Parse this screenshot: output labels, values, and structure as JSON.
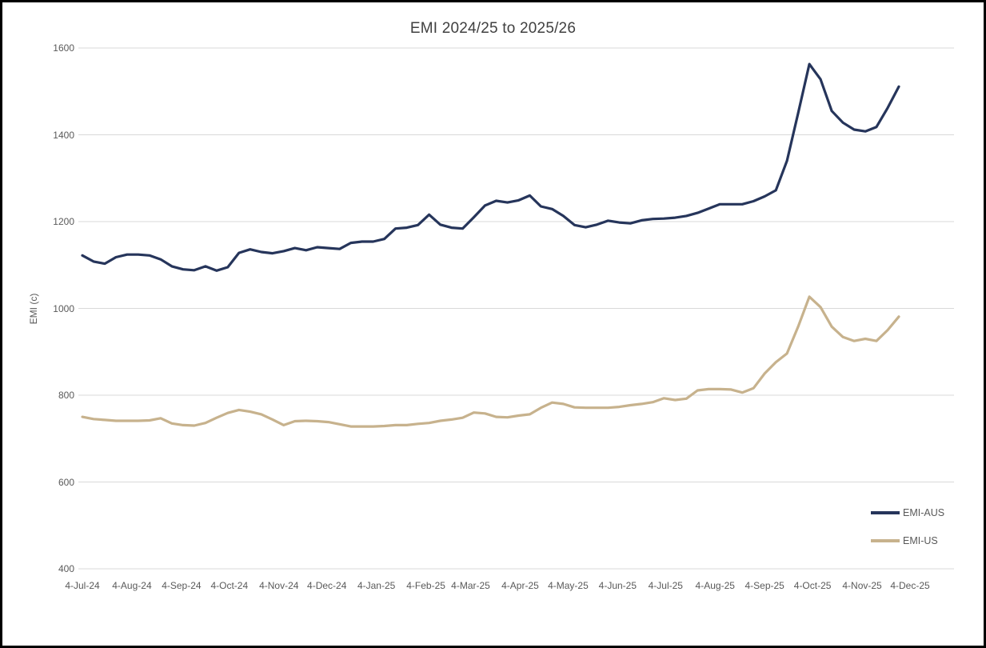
{
  "page": {
    "background": "#FFFFFF",
    "border_color": "#000000"
  },
  "chart_data": {
    "type": "line",
    "title": "EMI 2024/25 to 2025/26",
    "xlabel": "",
    "ylabel": "EMI (c)",
    "ylim": [
      400,
      1600
    ],
    "yticks": [
      400,
      600,
      800,
      1000,
      1200,
      1400,
      1600
    ],
    "grid": true,
    "gridline_color": "#D9D9D9",
    "title_color": "#404040",
    "axis_text_color": "#595959",
    "legend_position": "right-inside-lower",
    "x_tick_labels": [
      "4-Jul-24",
      "4-Aug-24",
      "4-Sep-24",
      "4-Oct-24",
      "4-Nov-24",
      "4-Dec-24",
      "4-Jan-25",
      "4-Feb-25",
      "4-Mar-25",
      "4-Apr-25",
      "4-May-25",
      "4-Jun-25",
      "4-Jul-25",
      "4-Aug-25",
      "4-Sep-25",
      "4-Oct-25",
      "4-Nov-25",
      "4-Dec-25"
    ],
    "x_tick_day_offsets": [
      0,
      31,
      62,
      92,
      123,
      153,
      184,
      215,
      243,
      274,
      304,
      335,
      365,
      396,
      427,
      457,
      488,
      518
    ],
    "observation_interval_days": 7,
    "series": [
      {
        "name": "EMI-AUS",
        "color": "#26355B",
        "values": [
          1122,
          1108,
          1103,
          1118,
          1124,
          1124,
          1122,
          1113,
          1097,
          1090,
          1088,
          1097,
          1087,
          1095,
          1128,
          1136,
          1130,
          1127,
          1132,
          1139,
          1134,
          1141,
          1139,
          1137,
          1151,
          1154,
          1154,
          1160,
          1184,
          1186,
          1192,
          1216,
          1193,
          1186,
          1184,
          1210,
          1237,
          1248,
          1244,
          1249,
          1260,
          1235,
          1229,
          1213,
          1192,
          1187,
          1193,
          1202,
          1198,
          1196,
          1203,
          1206,
          1207,
          1209,
          1213,
          1220,
          1230,
          1240,
          1240,
          1240,
          1247,
          1258,
          1272,
          1340,
          1450,
          1563,
          1528,
          1455,
          1428,
          1412,
          1408,
          1418,
          1462,
          1511
        ]
      },
      {
        "name": "EMI-US",
        "color": "#C7B28D",
        "values": [
          750,
          745,
          743,
          741,
          741,
          741,
          742,
          747,
          735,
          731,
          730,
          736,
          748,
          759,
          766,
          762,
          756,
          744,
          731,
          740,
          741,
          740,
          738,
          733,
          728,
          728,
          728,
          729,
          731,
          731,
          734,
          736,
          741,
          744,
          748,
          760,
          758,
          750,
          749,
          753,
          756,
          771,
          783,
          780,
          772,
          771,
          771,
          771,
          773,
          777,
          780,
          784,
          793,
          789,
          792,
          811,
          814,
          814,
          813,
          806,
          816,
          850,
          876,
          896,
          958,
          1027,
          1003,
          958,
          934,
          925,
          930,
          925,
          950,
          981
        ]
      }
    ]
  }
}
